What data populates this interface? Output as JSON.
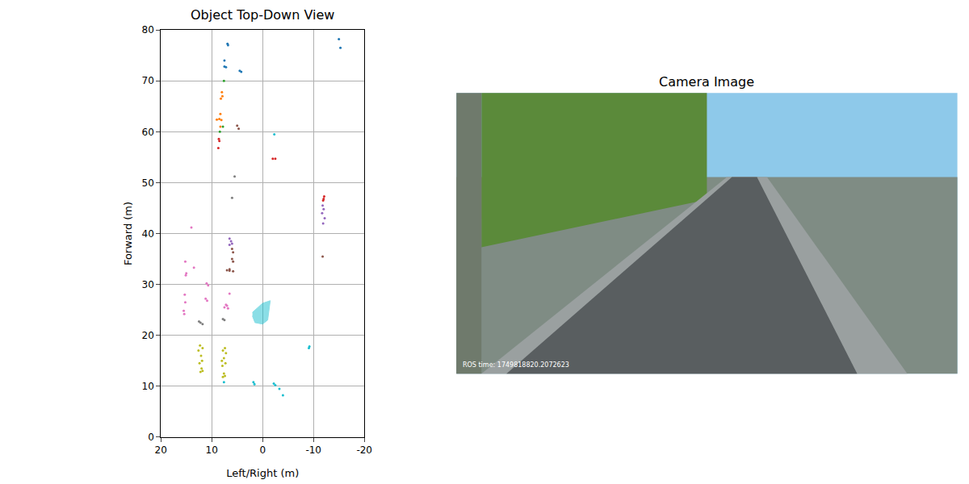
{
  "chart_data": [
    {
      "type": "scatter",
      "title": "Object Top-Down View",
      "x_label": "Left/Right (m)",
      "y_label": "Forward (m)",
      "xlim": [
        20,
        -20
      ],
      "xticks": [
        20,
        10,
        0,
        -10,
        -20
      ],
      "ylim": [
        0,
        80
      ],
      "yticks": [
        0,
        10,
        20,
        30,
        40,
        50,
        60,
        70,
        80
      ],
      "grid": true,
      "marker": "circle",
      "series": [
        {
          "color": "#1f77b4",
          "x": [
            6.8,
            6.9,
            7.5,
            7.5,
            7.2,
            4.2,
            4.5,
            -15.0,
            -15.3
          ],
          "y": [
            77.0,
            77.3,
            74.0,
            72.8,
            72.7,
            71.8,
            72.0,
            78.2,
            76.5
          ]
        },
        {
          "color": "#ff7f0e",
          "x": [
            8.0,
            7.9,
            8.2,
            8.3,
            8.5,
            9.0,
            8.1,
            8.3
          ],
          "y": [
            67.8,
            67.0,
            66.5,
            63.5,
            62.5,
            62.4,
            62.3,
            61.0
          ]
        },
        {
          "color": "#2ca02c",
          "x": [
            8.4,
            7.8,
            7.6
          ],
          "y": [
            60.0,
            61.0,
            70.0
          ]
        },
        {
          "color": "#d62728",
          "x": [
            8.6,
            8.5,
            8.7,
            -2.0,
            -2.5,
            -12.0,
            -12.1,
            -11.9
          ],
          "y": [
            58.6,
            58.2,
            56.8,
            54.7,
            54.7,
            46.8,
            47.3,
            46.5
          ]
        },
        {
          "color": "#9467bd",
          "x": [
            -11.8,
            -12.0,
            -11.7,
            -12.2,
            -11.9,
            6.5,
            6.2,
            6.0,
            6.5
          ],
          "y": [
            45.5,
            44.8,
            44.0,
            43.0,
            42.0,
            39.0,
            38.5,
            38.0,
            37.8
          ]
        },
        {
          "color": "#8c564b",
          "x": [
            5.0,
            4.7,
            -11.8,
            6.0,
            5.8,
            6.0,
            5.8,
            6.5,
            7.0,
            5.8,
            6.5
          ],
          "y": [
            61.2,
            60.6,
            35.5,
            37.0,
            36.3,
            35.0,
            34.5,
            33.0,
            32.8,
            32.6,
            32.7
          ]
        },
        {
          "color": "#e377c2",
          "x": [
            15.0,
            15.1,
            11.0,
            10.7,
            11.2,
            10.9,
            7.2,
            7.5,
            6.8,
            7.0,
            15.2,
            13.5,
            14.0,
            6.5,
            15.3,
            15.2,
            15.5,
            15.4
          ],
          "y": [
            32.2,
            31.8,
            30.2,
            29.8,
            27.2,
            26.8,
            26.0,
            25.5,
            25.3,
            25.8,
            34.5,
            33.3,
            41.2,
            28.2,
            28.0,
            26.5,
            24.8,
            24.2
          ]
        },
        {
          "color": "#7f7f7f",
          "x": [
            7.8,
            7.5,
            12.2,
            11.8,
            12.5,
            5.5,
            6.0
          ],
          "y": [
            23.2,
            23.0,
            22.5,
            22.2,
            22.7,
            51.2,
            47.0
          ]
        },
        {
          "color": "#bcbd22",
          "x": [
            12.3,
            11.8,
            12.6,
            12.1,
            11.9,
            12.4,
            12.0,
            11.8,
            12.2,
            7.4,
            7.8,
            7.2,
            7.6,
            8.0,
            7.3,
            7.9,
            7.6,
            7.4,
            7.8
          ],
          "y": [
            18.0,
            17.5,
            17.0,
            16.0,
            15.0,
            14.5,
            13.5,
            13.0,
            12.8,
            17.5,
            17.0,
            16.5,
            15.5,
            15.0,
            14.5,
            14.0,
            12.5,
            12.0,
            11.8
          ]
        },
        {
          "color": "#17becf",
          "x": [
            7.6,
            1.8,
            1.6,
            -2.2,
            -2.5,
            -4.0,
            -3.3,
            -9.2,
            -9.1,
            -2.3
          ],
          "y": [
            10.8,
            10.8,
            10.4,
            10.5,
            10.2,
            8.2,
            9.5,
            17.8,
            17.5,
            59.5
          ]
        },
        {
          "type": "polygon",
          "color": "#17becf",
          "x": [
            2.0,
            0.0,
            -1.5,
            -1.0,
            0.0,
            1.5,
            2.0
          ],
          "y": [
            24.5,
            26.3,
            26.8,
            23.0,
            22.2,
            22.5,
            23.8
          ]
        }
      ]
    },
    {
      "type": "image",
      "title": "Camera Image",
      "annotations": [
        "ROS time: 1749818820.2072623"
      ]
    }
  ]
}
